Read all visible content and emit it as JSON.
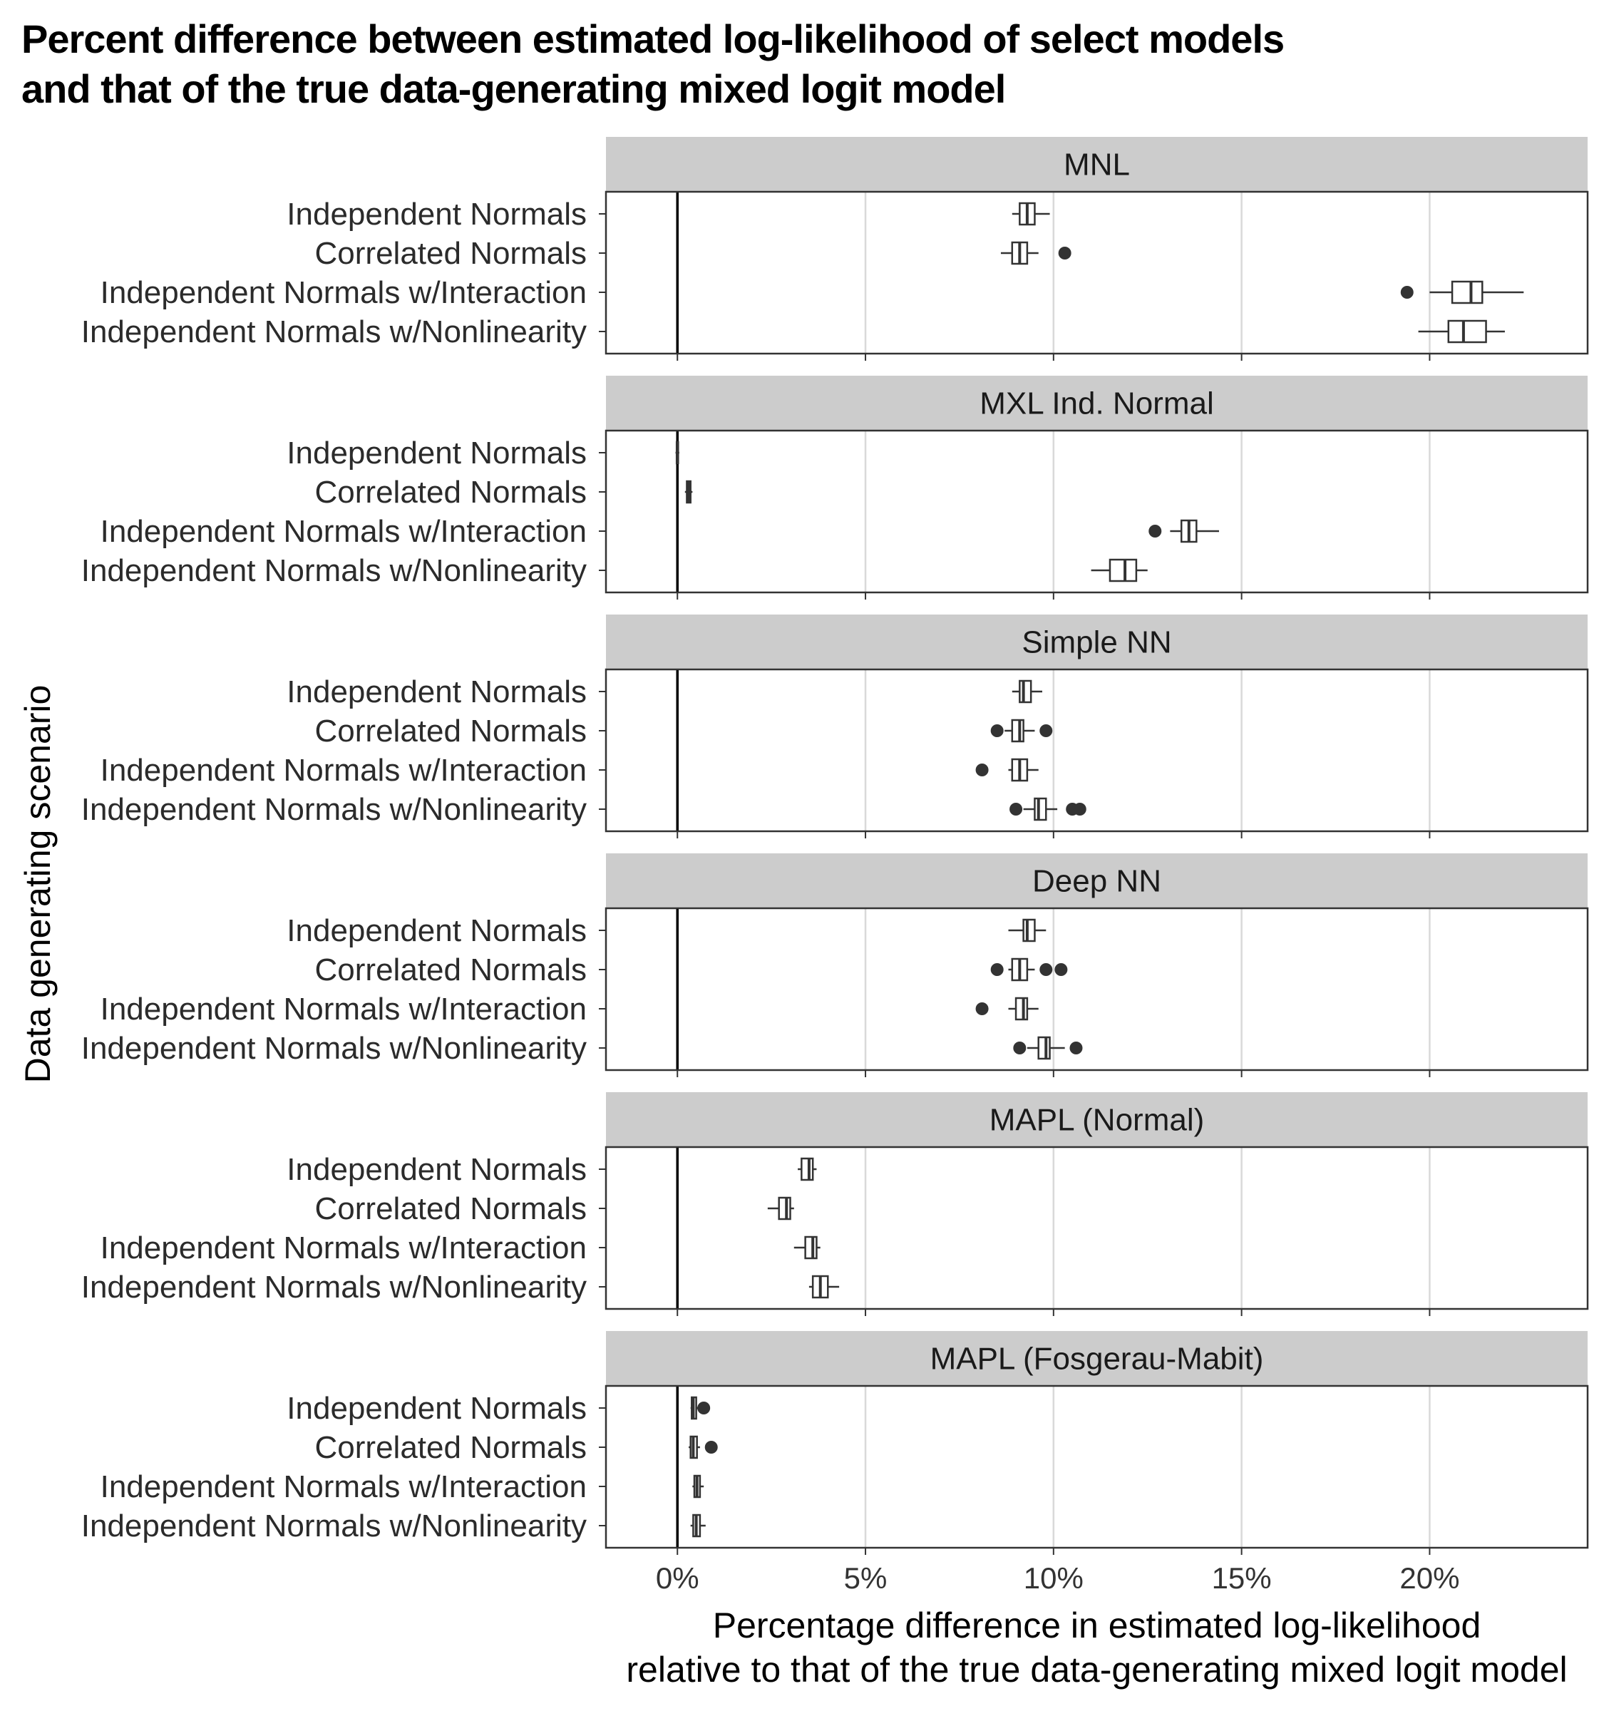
{
  "title_lines": [
    "Percent difference between estimated log-likelihood of select models",
    "and that of the true data-generating mixed logit model"
  ],
  "chart_data": {
    "type": "boxplot",
    "orientation": "horizontal",
    "facet_labels": [
      "MNL",
      "MXL Ind. Normal",
      "Simple NN",
      "Deep NN",
      "MAPL (Normal)",
      "MAPL (Fosgerau-Mabit)"
    ],
    "categories": [
      "Independent Normals",
      "Correlated Normals",
      "Independent Normals w/Interaction",
      "Independent Normals w/Nonlinearity"
    ],
    "ylabel": "Data generating scenario",
    "xlabel_lines": [
      "Percentage difference in estimated log-likelihood",
      "relative to that of the true data-generating mixed logit model"
    ],
    "x_ticks": [
      0,
      5,
      10,
      15,
      20
    ],
    "x_tick_labels": [
      "0%",
      "5%",
      "10%",
      "15%",
      "20%"
    ],
    "xlim": [
      -1.9,
      24.2
    ],
    "reference_line_x": 0,
    "grid": "vertical major",
    "facets": [
      {
        "label": "MNL",
        "boxes": [
          {
            "category": "Independent Normals",
            "whisker_low": 8.9,
            "q1": 9.1,
            "median": 9.3,
            "q3": 9.5,
            "whisker_high": 9.9,
            "outliers": []
          },
          {
            "category": "Correlated Normals",
            "whisker_low": 8.6,
            "q1": 8.9,
            "median": 9.1,
            "q3": 9.3,
            "whisker_high": 9.6,
            "outliers": [
              10.3
            ]
          },
          {
            "category": "Independent Normals w/Interaction",
            "whisker_low": 20.0,
            "q1": 20.6,
            "median": 21.1,
            "q3": 21.4,
            "whisker_high": 22.5,
            "outliers": [
              19.4
            ]
          },
          {
            "category": "Independent Normals w/Nonlinearity",
            "whisker_low": 19.7,
            "q1": 20.5,
            "median": 20.9,
            "q3": 21.5,
            "whisker_high": 22.0,
            "outliers": []
          }
        ]
      },
      {
        "label": "MXL Ind. Normal",
        "boxes": [
          {
            "category": "Independent Normals",
            "whisker_low": -0.05,
            "q1": -0.02,
            "median": 0.0,
            "q3": 0.02,
            "whisker_high": 0.05,
            "outliers": []
          },
          {
            "category": "Correlated Normals",
            "whisker_low": 0.2,
            "q1": 0.25,
            "median": 0.3,
            "q3": 0.35,
            "whisker_high": 0.4,
            "outliers": []
          },
          {
            "category": "Independent Normals w/Interaction",
            "whisker_low": 13.1,
            "q1": 13.4,
            "median": 13.6,
            "q3": 13.8,
            "whisker_high": 14.4,
            "outliers": [
              12.7
            ]
          },
          {
            "category": "Independent Normals w/Nonlinearity",
            "whisker_low": 11.0,
            "q1": 11.5,
            "median": 11.9,
            "q3": 12.2,
            "whisker_high": 12.5,
            "outliers": []
          }
        ]
      },
      {
        "label": "Simple NN",
        "boxes": [
          {
            "category": "Independent Normals",
            "whisker_low": 8.9,
            "q1": 9.1,
            "median": 9.2,
            "q3": 9.4,
            "whisker_high": 9.7,
            "outliers": []
          },
          {
            "category": "Correlated Normals",
            "whisker_low": 8.7,
            "q1": 8.9,
            "median": 9.1,
            "q3": 9.2,
            "whisker_high": 9.5,
            "outliers": [
              8.5,
              9.8
            ]
          },
          {
            "category": "Independent Normals w/Interaction",
            "whisker_low": 8.8,
            "q1": 8.9,
            "median": 9.1,
            "q3": 9.3,
            "whisker_high": 9.6,
            "outliers": [
              8.1
            ]
          },
          {
            "category": "Independent Normals w/Nonlinearity",
            "whisker_low": 9.2,
            "q1": 9.5,
            "median": 9.6,
            "q3": 9.8,
            "whisker_high": 10.1,
            "outliers": [
              9.0,
              10.5,
              10.7
            ]
          }
        ]
      },
      {
        "label": "Deep NN",
        "boxes": [
          {
            "category": "Independent Normals",
            "whisker_low": 8.8,
            "q1": 9.2,
            "median": 9.3,
            "q3": 9.5,
            "whisker_high": 9.8,
            "outliers": []
          },
          {
            "category": "Correlated Normals",
            "whisker_low": 8.8,
            "q1": 8.9,
            "median": 9.1,
            "q3": 9.3,
            "whisker_high": 9.5,
            "outliers": [
              8.5,
              9.8,
              10.2
            ]
          },
          {
            "category": "Independent Normals w/Interaction",
            "whisker_low": 8.8,
            "q1": 9.0,
            "median": 9.2,
            "q3": 9.3,
            "whisker_high": 9.6,
            "outliers": [
              8.1
            ]
          },
          {
            "category": "Independent Normals w/Nonlinearity",
            "whisker_low": 9.3,
            "q1": 9.6,
            "median": 9.8,
            "q3": 9.9,
            "whisker_high": 10.3,
            "outliers": [
              9.1,
              10.6
            ]
          }
        ]
      },
      {
        "label": "MAPL (Normal)",
        "boxes": [
          {
            "category": "Independent Normals",
            "whisker_low": 3.2,
            "q1": 3.3,
            "median": 3.5,
            "q3": 3.6,
            "whisker_high": 3.7,
            "outliers": []
          },
          {
            "category": "Correlated Normals",
            "whisker_low": 2.4,
            "q1": 2.7,
            "median": 2.9,
            "q3": 3.0,
            "whisker_high": 3.1,
            "outliers": []
          },
          {
            "category": "Independent Normals w/Interaction",
            "whisker_low": 3.1,
            "q1": 3.4,
            "median": 3.6,
            "q3": 3.7,
            "whisker_high": 3.8,
            "outliers": []
          },
          {
            "category": "Independent Normals w/Nonlinearity",
            "whisker_low": 3.5,
            "q1": 3.6,
            "median": 3.8,
            "q3": 4.0,
            "whisker_high": 4.3,
            "outliers": []
          }
        ]
      },
      {
        "label": "MAPL (Fosgerau-Mabit)",
        "boxes": [
          {
            "category": "Independent Normals",
            "whisker_low": 0.35,
            "q1": 0.38,
            "median": 0.42,
            "q3": 0.5,
            "whisker_high": 0.55,
            "outliers": [
              0.7
            ]
          },
          {
            "category": "Correlated Normals",
            "whisker_low": 0.3,
            "q1": 0.35,
            "median": 0.42,
            "q3": 0.52,
            "whisker_high": 0.6,
            "outliers": [
              0.9
            ]
          },
          {
            "category": "Independent Normals w/Interaction",
            "whisker_low": 0.4,
            "q1": 0.45,
            "median": 0.52,
            "q3": 0.6,
            "whisker_high": 0.7,
            "outliers": []
          },
          {
            "category": "Independent Normals w/Nonlinearity",
            "whisker_low": 0.35,
            "q1": 0.42,
            "median": 0.5,
            "q3": 0.6,
            "whisker_high": 0.75,
            "outliers": []
          }
        ]
      }
    ]
  }
}
